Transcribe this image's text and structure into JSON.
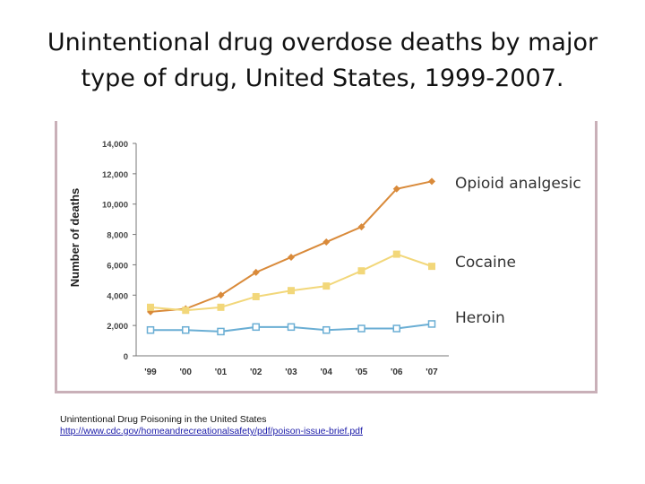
{
  "slide": {
    "title_line1": "Unintentional drug overdose deaths by major",
    "title_line2": "type of drug, United States, 1999-2007."
  },
  "source": {
    "line1": "Unintentional Drug Poisoning in the United States",
    "link": "http://www.cdc.gov/homeandrecreationalsafety/pdf/poison-issue-brief.pdf"
  },
  "chart_data": {
    "type": "line",
    "ylabel": "Number of deaths",
    "xlabel": "",
    "categories": [
      "'99",
      "'00",
      "'01",
      "'02",
      "'03",
      "'04",
      "'05",
      "'06",
      "'07"
    ],
    "ylim": [
      0,
      14000
    ],
    "yticks": [
      0,
      2000,
      4000,
      6000,
      8000,
      10000,
      12000,
      14000
    ],
    "ytick_labels": [
      "0",
      "2,000",
      "4,000",
      "6,000",
      "8,000",
      "10,000",
      "12,000",
      "14,000"
    ],
    "grid": false,
    "legend": "right",
    "series": [
      {
        "name": "Opioid analgesic",
        "color": "#d98a3a",
        "marker": "diamond",
        "values": [
          2900,
          3100,
          4000,
          5500,
          6500,
          7500,
          8500,
          11000,
          11500
        ]
      },
      {
        "name": "Cocaine",
        "color": "#f2d77a",
        "marker": "square",
        "values": [
          3200,
          3000,
          3200,
          3900,
          4300,
          4600,
          5600,
          6700,
          5900
        ]
      },
      {
        "name": "Heroin",
        "color": "#6aaed4",
        "marker": "open-square",
        "values": [
          1700,
          1700,
          1600,
          1900,
          1900,
          1700,
          1800,
          1800,
          2100
        ]
      }
    ]
  }
}
